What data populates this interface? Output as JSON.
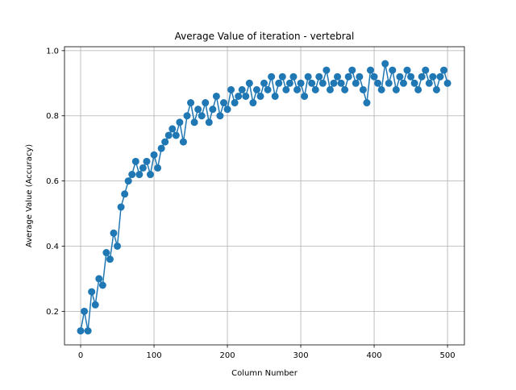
{
  "chart_data": {
    "type": "line",
    "title": "Average Value of iteration - vertebral",
    "xlabel": "Column Number",
    "ylabel": "Average Value (Accuracy)",
    "xlim": [
      -22,
      523
    ],
    "ylim": [
      0.097,
      1.012
    ],
    "xticks": [
      0,
      100,
      200,
      300,
      400,
      500
    ],
    "yticks": [
      0.2,
      0.4,
      0.6,
      0.8,
      1.0
    ],
    "xtick_labels": [
      "0",
      "100",
      "200",
      "300",
      "400",
      "500"
    ],
    "ytick_labels": [
      "0.2",
      "0.4",
      "0.6",
      "0.8",
      "1.0"
    ],
    "grid": true,
    "marker": "circle",
    "series": [
      {
        "color": "#1f77b4",
        "x": [
          0,
          5,
          10,
          15,
          20,
          25,
          30,
          35,
          40,
          45,
          50,
          55,
          60,
          65,
          70,
          75,
          80,
          85,
          90,
          95,
          100,
          105,
          110,
          115,
          120,
          125,
          130,
          135,
          140,
          145,
          150,
          155,
          160,
          165,
          170,
          175,
          180,
          185,
          190,
          195,
          200,
          205,
          210,
          215,
          220,
          225,
          230,
          235,
          240,
          245,
          250,
          255,
          260,
          265,
          270,
          275,
          280,
          285,
          290,
          295,
          300,
          305,
          310,
          315,
          320,
          325,
          330,
          335,
          340,
          345,
          350,
          355,
          360,
          365,
          370,
          375,
          380,
          385,
          390,
          395,
          400,
          405,
          410,
          415,
          420,
          425,
          430,
          435,
          440,
          445,
          450,
          455,
          460,
          465,
          470,
          475,
          480,
          485,
          490,
          495,
          500
        ],
        "y": [
          0.14,
          0.2,
          0.14,
          0.26,
          0.22,
          0.3,
          0.28,
          0.38,
          0.36,
          0.44,
          0.4,
          0.52,
          0.56,
          0.6,
          0.62,
          0.66,
          0.62,
          0.64,
          0.66,
          0.62,
          0.68,
          0.64,
          0.7,
          0.72,
          0.74,
          0.76,
          0.74,
          0.78,
          0.72,
          0.8,
          0.84,
          0.78,
          0.82,
          0.8,
          0.84,
          0.78,
          0.82,
          0.86,
          0.8,
          0.84,
          0.82,
          0.88,
          0.84,
          0.86,
          0.88,
          0.86,
          0.9,
          0.84,
          0.88,
          0.86,
          0.9,
          0.88,
          0.92,
          0.86,
          0.9,
          0.92,
          0.88,
          0.9,
          0.92,
          0.88,
          0.9,
          0.86,
          0.92,
          0.9,
          0.88,
          0.92,
          0.9,
          0.94,
          0.88,
          0.9,
          0.92,
          0.9,
          0.88,
          0.92,
          0.94,
          0.9,
          0.92,
          0.88,
          0.84,
          0.94,
          0.92,
          0.9,
          0.88,
          0.96,
          0.9,
          0.94,
          0.88,
          0.92,
          0.9,
          0.94,
          0.92,
          0.9,
          0.88,
          0.92,
          0.94,
          0.9,
          0.92,
          0.88,
          0.92,
          0.94,
          0.9
        ]
      }
    ]
  }
}
